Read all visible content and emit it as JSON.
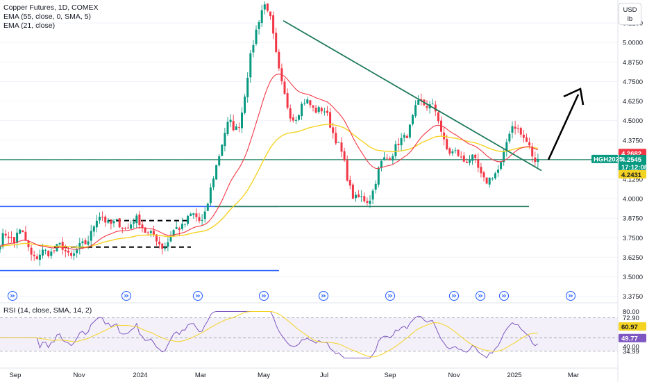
{
  "header": {
    "symbol_title": "Copper Futures, 1D, COMEX",
    "ema55_label": "EMA (55, close, 0, SMA, 5)",
    "ema21_label": "EMA (21, close)",
    "currency": "USD",
    "unit": "lb"
  },
  "rsi_panel": {
    "label": "RSI (14, close, SMA, 14, 2)"
  },
  "colors": {
    "up": "#089981",
    "down": "#f23645",
    "ema21": "#f23645",
    "ema55": "#f5d323",
    "trend": "#1e7a5b",
    "support_blue": "#2962ff",
    "rsi": "#7e57c2",
    "rsi_ma": "#f5d323",
    "last_price_tag": "#089981",
    "high_tag": "#f23645",
    "ema_tag": "#f5d323"
  },
  "chart_data": {
    "type": "candlestick",
    "title": "Copper Futures, 1D, COMEX",
    "instrument": "HGH2025",
    "price_axis": {
      "ticks": [
        "5.1250",
        "5.0000",
        "4.8750",
        "4.7500",
        "4.6250",
        "4.5000",
        "4.3750",
        "4.2500",
        "4.1250",
        "4.0000",
        "3.8750",
        "3.7500",
        "3.6250",
        "3.5000",
        "3.3750"
      ],
      "range": [
        3.36,
        5.25
      ]
    },
    "time_axis": {
      "labels": [
        "Sep",
        "Nov",
        "2024",
        "Mar",
        "May",
        "Jul",
        "Sep",
        "Nov",
        "2025",
        "Mar"
      ]
    },
    "price_tags": {
      "last_price": "4.2545",
      "countdown": "17:12:08",
      "high": "4.2682",
      "ema": "4.2431",
      "symbol": "HGH2025"
    },
    "rsi_axis": {
      "ticks": [
        "80.00",
        "72.90",
        "40.00",
        "34.99"
      ],
      "range": [
        25,
        82
      ],
      "value": "49.77",
      "ma_value": "60.97"
    },
    "anchors": [
      {
        "month": "Sep 2023",
        "close": 3.78
      },
      {
        "month": "Oct 2023",
        "close": 3.63
      },
      {
        "month": "Nov 2023",
        "close": 3.7
      },
      {
        "month": "Dec 2023",
        "close": 3.88
      },
      {
        "month": "Jan 2024",
        "close": 3.8
      },
      {
        "month": "Feb 2024",
        "close": 3.74
      },
      {
        "month": "Mar 2024",
        "close": 3.92
      },
      {
        "month": "Apr 2024",
        "close": 4.45
      },
      {
        "month": "May 2024",
        "close": 5.18
      },
      {
        "month": "Jun 2024",
        "close": 4.55
      },
      {
        "month": "Jul 2024",
        "close": 4.58
      },
      {
        "month": "Aug 2024",
        "close": 3.98
      },
      {
        "month": "Sep 2024",
        "close": 4.25
      },
      {
        "month": "Oct 2024",
        "close": 4.62
      },
      {
        "month": "Nov 2024",
        "close": 4.32
      },
      {
        "month": "Dec 2024",
        "close": 4.12
      },
      {
        "month": "Jan 2025",
        "close": 4.42
      },
      {
        "month": "Feb 2025",
        "close": 4.2545
      }
    ],
    "drawings": {
      "descending_trendline": {
        "from": [
          "May 2024",
          5.14
        ],
        "to": [
          "Feb 2025",
          4.23
        ]
      },
      "horizontal_level": 4.25,
      "support_level": 3.95,
      "range_upper": 3.95,
      "range_lower": 3.54,
      "dashed_box_upper": 3.86,
      "dashed_box_lower": 3.69,
      "projection_arrow": "up"
    }
  }
}
